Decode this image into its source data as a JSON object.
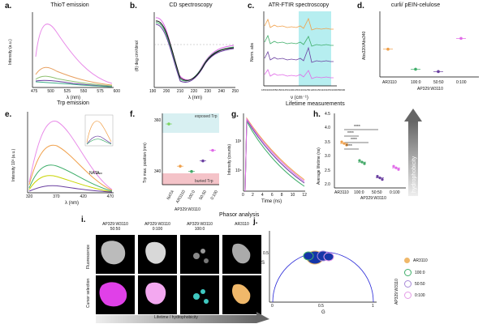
{
  "panels": {
    "a": {
      "letter": "a.",
      "title": "ThioT emission",
      "xlabel": "λ (nm)",
      "ylabel": "Intensity (a.u.)",
      "xticks": [
        "475",
        "500",
        "525",
        "550",
        "575",
        "600"
      ]
    },
    "b": {
      "letter": "b.",
      "title": "CD spectroscopy",
      "xlabel": "λ (nm)",
      "ylabel": "(θ) deg cm²/dmol",
      "xticks": [
        "190",
        "200",
        "210",
        "220",
        "230",
        "240",
        "250"
      ]
    },
    "c": {
      "letter": "c.",
      "title": "ATR-FTIR spectroscopy",
      "xlabel": "ν (cm⁻¹)",
      "ylabel": "Norm. abs",
      "xticks": [
        "1650",
        "1600",
        "1550",
        "1500",
        "1450",
        "1400",
        "1350",
        "1300",
        "1250",
        "1200",
        "1150",
        "1100",
        "1050",
        "1000",
        "950",
        "900"
      ]
    },
    "d": {
      "letter": "d.",
      "title": "curli/ pEIN-celulose",
      "ylabel": "Abs320/Abs340",
      "xticks": [
        "AR3110",
        "100:0",
        "50:50",
        "0:100"
      ],
      "xgroup": "AP329:W3110"
    },
    "e": {
      "letter": "e.",
      "title": "Trp emission",
      "xlabel": "λ (nm)",
      "ylabel": "Intensity 10³ (a.u.)",
      "xticks": [
        "320",
        "370",
        "420",
        "470"
      ],
      "legend": "NATA"
    },
    "f": {
      "letter": "f.",
      "ylabel": "Trp max. position (nm)",
      "yticks": [
        "360",
        "340"
      ],
      "xticks": [
        "NATA",
        "AR3110",
        "100:0",
        "50:50",
        "0:100"
      ],
      "xgroup": "AP329:W3110",
      "exposed": "exposed Trp",
      "buried": "buried Trp"
    },
    "g": {
      "letter": "g.",
      "xlabel": "Time (ns)",
      "ylabel": "Intensity (counts)",
      "xticks": [
        "0",
        "2",
        "4",
        "6",
        "8",
        "10",
        "12"
      ],
      "yticks": [
        "10³",
        "10⁴"
      ]
    },
    "h": {
      "letter": "h.",
      "ylabel": "Average lifetime (ns)",
      "yticks": [
        "4.5",
        "4.0",
        "3.5",
        "3.0",
        "2.5",
        "2.0"
      ],
      "xticks": [
        "AR3110",
        "100:0",
        "50:50",
        "0:100"
      ],
      "xgroup": "AP329:W3110",
      "sig": "****"
    },
    "lifetime_header": "Lifetime measurements",
    "hydrophobicity": "hydrophobicity",
    "i": {
      "letter": "i.",
      "cols": [
        "AP329:W3110\n50:50",
        "AP329:W3110\n0:100",
        "AP329:W3110\n100:0",
        "AR3110"
      ],
      "rows": [
        "Fluorescence",
        "Cursor selection"
      ],
      "arrow_label": "Lifetime / hydrophobicity"
    },
    "phasor_header": "Phasor analysis",
    "j": {
      "letter": "j.",
      "xlabel": "G",
      "ylabel": "S",
      "xticks": [
        "0",
        "0.5",
        "1"
      ],
      "yticks": [
        "0.5"
      ],
      "legend_group": "AP329:W3110",
      "legend": [
        {
          "label": "AR3110",
          "color": "#f0b86a"
        },
        {
          "label": "100:0",
          "color": "#3fae6a"
        },
        {
          "label": "50:50",
          "color": "#a88ad8"
        },
        {
          "label": "0:100",
          "color": "#e59be8"
        }
      ]
    }
  },
  "colors": {
    "ar3110": "#f0a04a",
    "s100": "#44a868",
    "s5050": "#6a3fa0",
    "s0100": "#e06ae8",
    "nata": "#c8d400",
    "pink": "#f4c3c8",
    "cyan": "#b6eef0",
    "blue": "#1535a8"
  },
  "chart_data": [
    {
      "type": "line",
      "panel": "d",
      "title": "curli/ pEIN-celulose",
      "categories": [
        "AR3110",
        "100:0",
        "50:50",
        "0:100"
      ],
      "series": [
        {
          "name": "Abs320/Abs340",
          "values": [
            1.8,
            0.5,
            0.35,
            2.5
          ]
        }
      ]
    },
    {
      "type": "scatter",
      "panel": "f",
      "ylabel": "Trp max. position (nm)",
      "categories": [
        "NATA",
        "AR3110",
        "100:0",
        "50:50",
        "0:100"
      ],
      "values": [
        358,
        342,
        340,
        344,
        348
      ],
      "ylim": [
        335,
        362
      ]
    },
    {
      "type": "scatter",
      "panel": "h",
      "ylabel": "Average lifetime (ns)",
      "categories": [
        "AR3110",
        "100:0",
        "50:50",
        "0:100"
      ],
      "values": [
        3.55,
        2.9,
        2.35,
        2.7
      ],
      "ylim": [
        2.0,
        4.6
      ]
    }
  ]
}
